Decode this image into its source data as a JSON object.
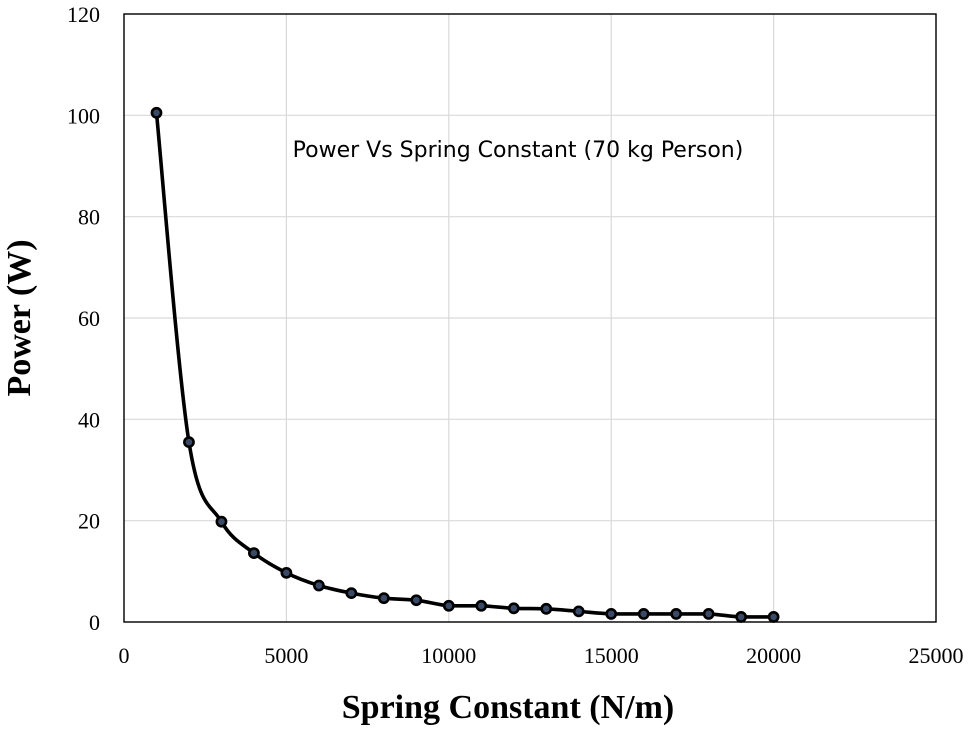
{
  "chart_data": {
    "type": "scatter",
    "title": "Power Vs Spring Constant (70 kg Person)",
    "xlabel": "Spring Constant (N/m)",
    "ylabel": "Power (W)",
    "xlim": [
      0,
      25000
    ],
    "ylim": [
      0,
      120
    ],
    "xticks": [
      0,
      5000,
      10000,
      15000,
      20000,
      25000
    ],
    "yticks": [
      0,
      20,
      40,
      60,
      80,
      100,
      120
    ],
    "grid": true,
    "smooth_line": true,
    "series": [
      {
        "x": [
          1000,
          2000,
          3000,
          4000,
          5000,
          6000,
          7000,
          8000,
          9000,
          10000,
          11000,
          12000,
          13000,
          14000,
          15000,
          16000,
          17000,
          18000,
          19000,
          20000
        ],
        "y": [
          100.5,
          35.5,
          19.8,
          13.6,
          9.7,
          7.2,
          5.7,
          4.7,
          4.3,
          3.2,
          3.2,
          2.7,
          2.6,
          2.1,
          1.6,
          1.6,
          1.6,
          1.6,
          1.0,
          1.0
        ]
      }
    ],
    "colors": {
      "line": "#000000",
      "marker_fill": "#3a4a66",
      "grid": "#d9d9d9"
    }
  }
}
